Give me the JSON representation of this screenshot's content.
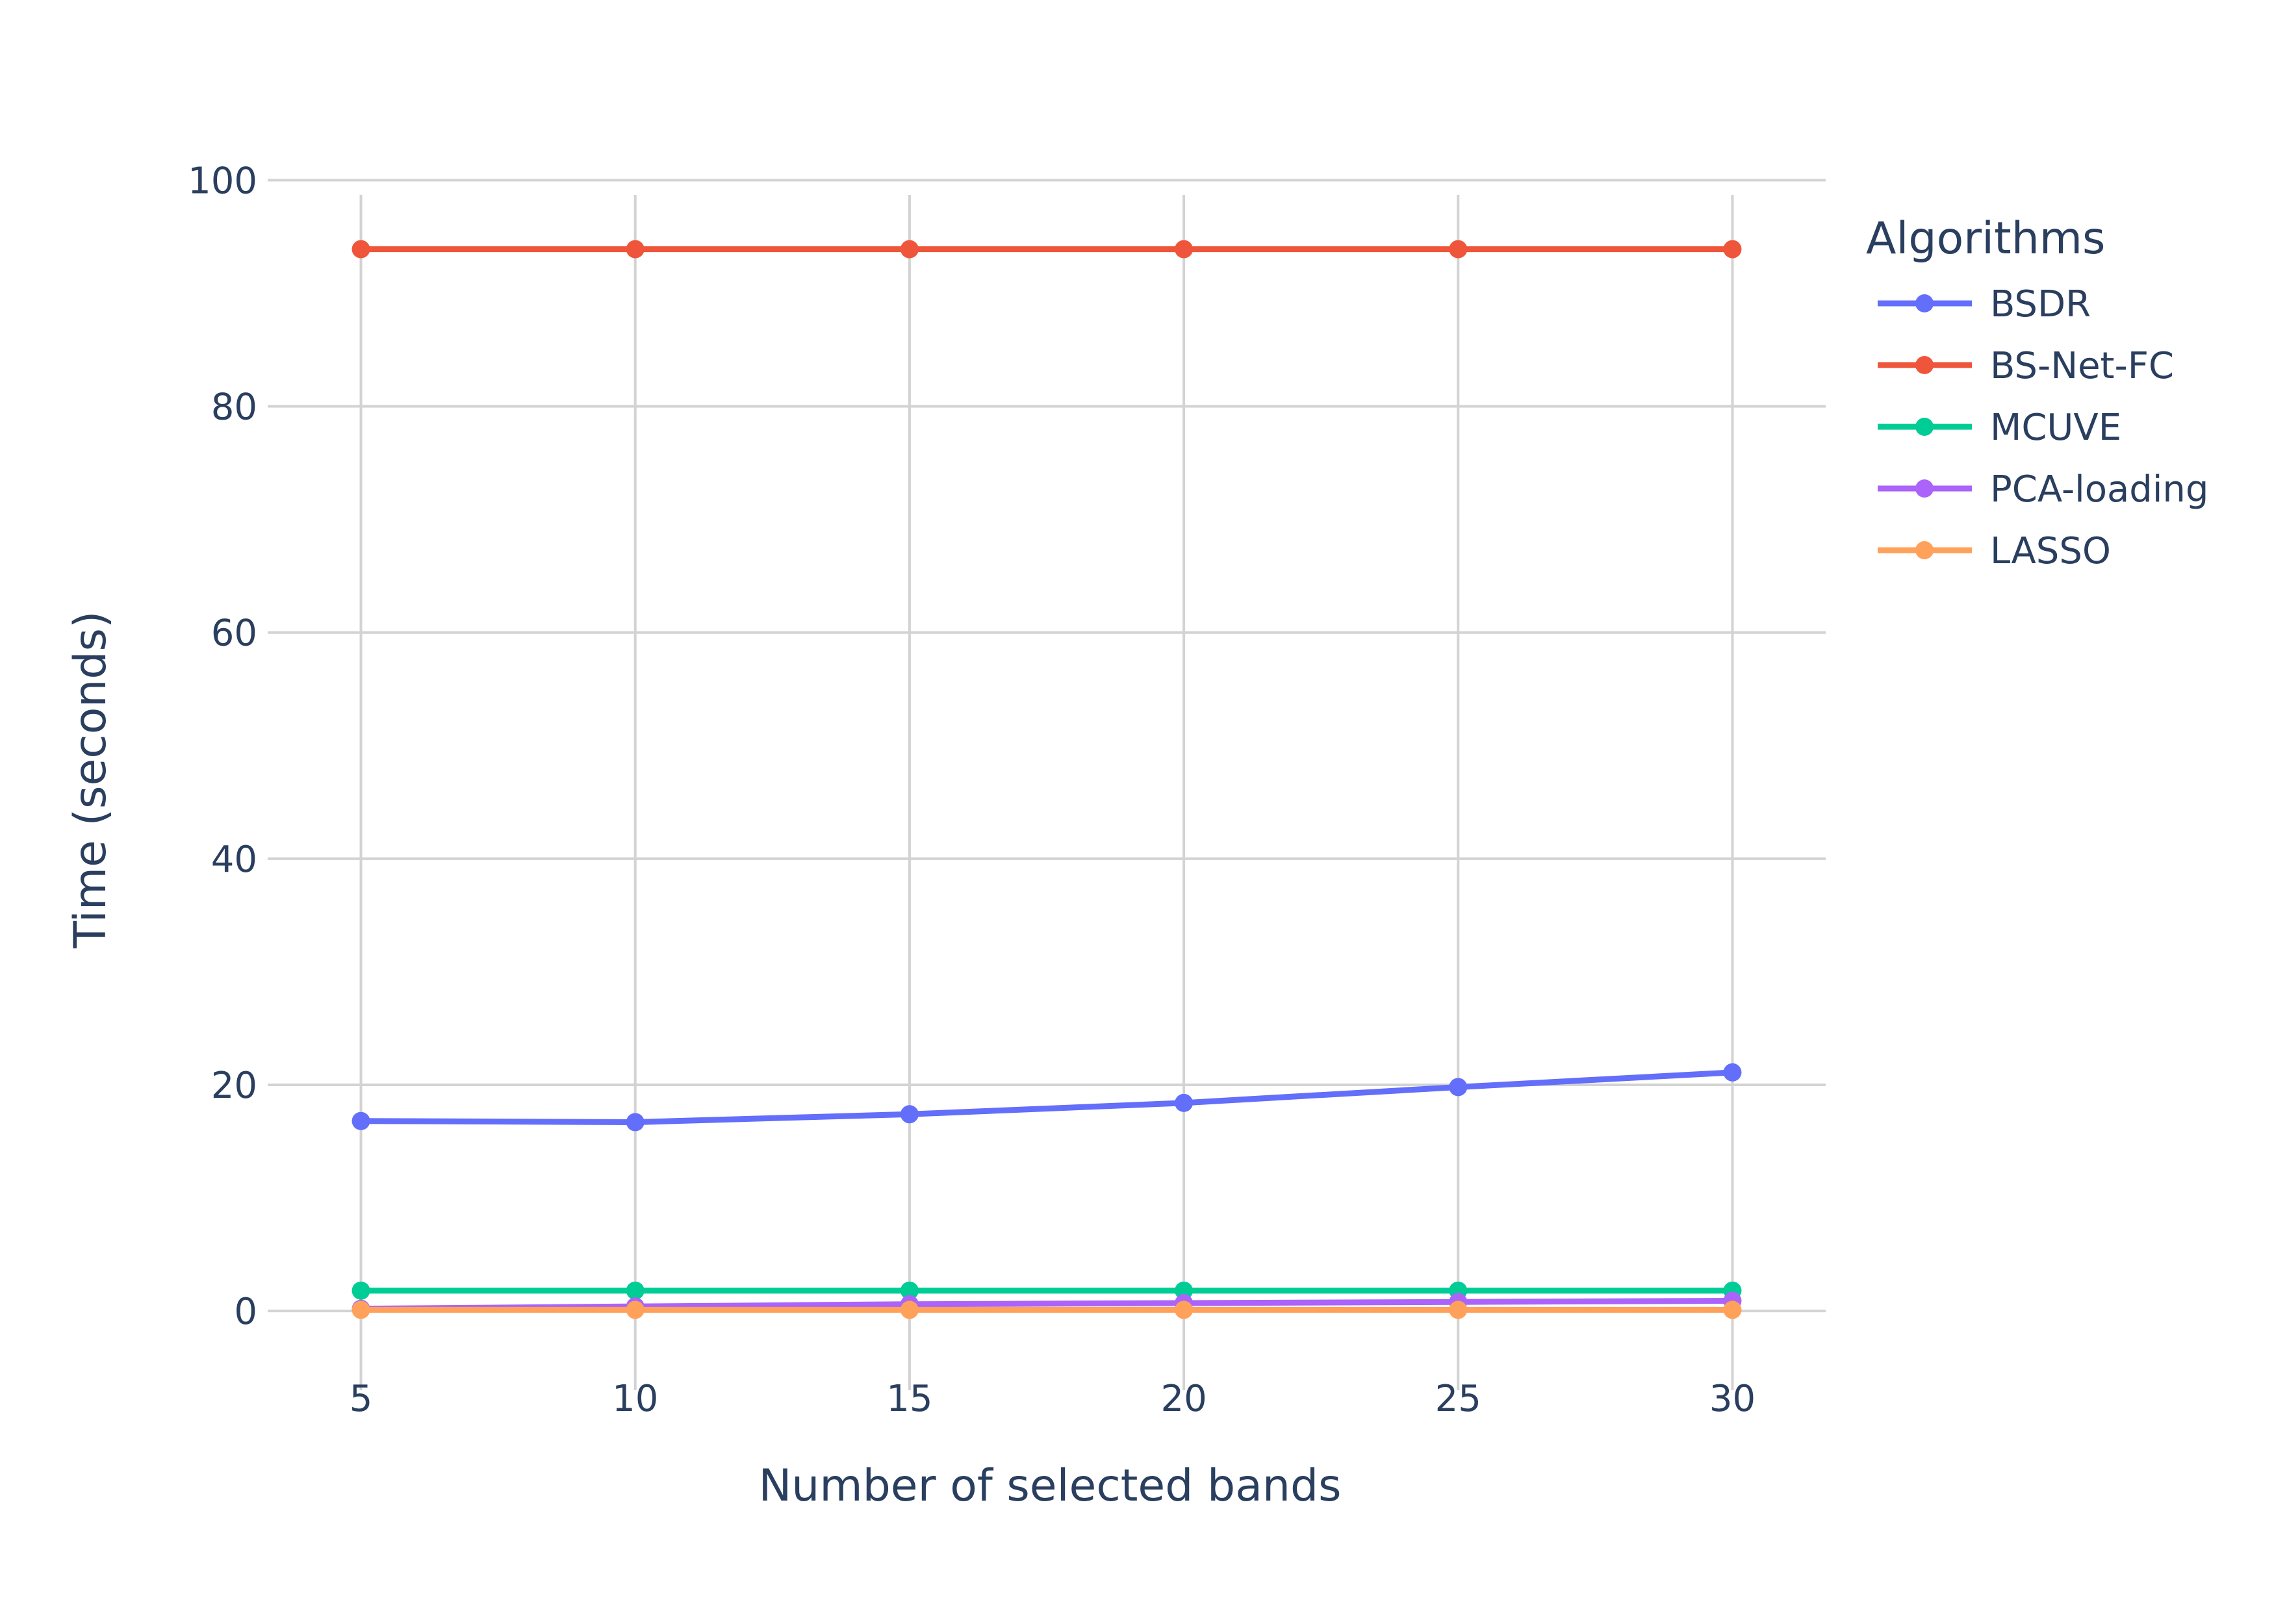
{
  "chart_data": {
    "type": "line",
    "title": "",
    "xlabel": "Number of selected bands",
    "ylabel": "Time (seconds)",
    "x": [
      5,
      10,
      15,
      20,
      25,
      30
    ],
    "xlim": [
      3.3,
      31.7
    ],
    "ylim": [
      -7,
      101
    ],
    "x_ticks": [
      5,
      10,
      15,
      20,
      25,
      30
    ],
    "y_ticks": [
      0,
      20,
      40,
      60,
      80,
      100
    ],
    "grid": true,
    "legend": {
      "title": "Algorithms",
      "position": "right"
    },
    "series": [
      {
        "name": "BSDR",
        "color": "#636efa",
        "values": [
          16.8,
          16.7,
          17.4,
          18.4,
          19.8,
          21.1
        ]
      },
      {
        "name": "BS-Net-FC",
        "color": "#ef553b",
        "values": [
          93.9,
          93.9,
          93.9,
          93.9,
          93.9,
          93.9
        ]
      },
      {
        "name": "MCUVE",
        "color": "#00cc96",
        "values": [
          1.8,
          1.8,
          1.8,
          1.8,
          1.8,
          1.8
        ]
      },
      {
        "name": "PCA-loading",
        "color": "#ab63fa",
        "values": [
          0.2,
          0.4,
          0.6,
          0.7,
          0.8,
          0.9
        ]
      },
      {
        "name": "LASSO",
        "color": "#ffa15a",
        "values": [
          0.1,
          0.1,
          0.1,
          0.1,
          0.1,
          0.1
        ]
      }
    ]
  }
}
